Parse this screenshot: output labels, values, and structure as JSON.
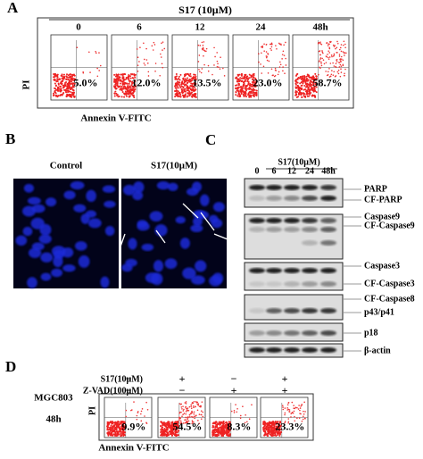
{
  "panel_a": {
    "letter": "A",
    "treatment": "S17 (10μM)",
    "times": [
      "0",
      "6",
      "12",
      "24",
      "48h"
    ],
    "percentages": [
      "5.0%",
      "12.0%",
      "13.5%",
      "23.0%",
      "58.7%"
    ],
    "y_label": "PI",
    "x_label": "Annexin V-FITC"
  },
  "panel_b": {
    "letter": "B",
    "labels": [
      "Control",
      "S17(10μM)"
    ]
  },
  "panel_c": {
    "letter": "C",
    "treatment": "S17(10μM)",
    "times": [
      "0",
      "6",
      "12",
      "24",
      "48h"
    ],
    "blot_labels": [
      "PARP",
      "CF-PARP",
      "Caspase9",
      "CF-Caspase9",
      "Caspase3",
      "CF-Caspase3",
      "CF-Caspase8",
      "p43/p41",
      "p18",
      "β-actin"
    ]
  },
  "panel_d": {
    "letter": "D",
    "row_labels": [
      "S17(10μM)",
      "Z-VAD(100μM)"
    ],
    "signs": [
      [
        "−",
        "+",
        "−",
        "+"
      ],
      [
        "−",
        "−",
        "+",
        "+"
      ]
    ],
    "cell_line": "MGC803",
    "time": "48h",
    "y_label": "PI",
    "x_label": "Annexin V-FITC",
    "percentages": [
      "9.9%",
      "54.5%",
      "8.3%",
      "23.3%"
    ]
  }
}
